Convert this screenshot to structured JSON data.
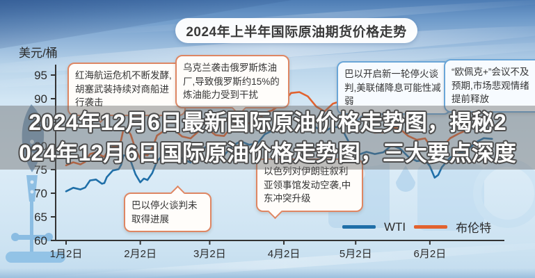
{
  "title_banner": "2024年上半年国际原油期货价格走势",
  "overlay": {
    "line1": "2024年12月6日最新国际原油价格走势图，揭秘2",
    "line2": "024年12月6日国际原油价格走势图，三大要点深度"
  },
  "axis": {
    "unit_label": "美元/桶"
  },
  "legend": [
    {
      "label": "WTI",
      "color": "#1f6fa8"
    },
    {
      "label": "布伦特",
      "color": "#e2622e"
    }
  ],
  "annotations": [
    {
      "style": "red",
      "text": "红海航运危机不断发酵,胡塞武装持续对商船进行袭击"
    },
    {
      "style": "red",
      "text": "乌克兰袭击俄罗斯炼油厂,导致俄罗斯约15%的炼油能力受到干扰"
    },
    {
      "style": "blue",
      "text": "巴以开启新一轮停火谈判,美联储降息可能性减弱"
    },
    {
      "style": "blue",
      "text": "“欧佩克+”会议不及预期,市场悲观情绪提前释放"
    },
    {
      "style": "red",
      "text": "巴以停火谈判未取得进展"
    },
    {
      "style": "red",
      "text": "以色列对伊朗驻叙利亚领事馆发动空袭,中东冲突升级"
    }
  ],
  "chart_data": {
    "type": "line",
    "title": "2024年上半年国际原油期货价格走势",
    "ylabel": "美元/桶",
    "ylim": [
      60,
      97
    ],
    "grid": false,
    "legend_position": "bottom-right",
    "y_tick_values": [
      95,
      90,
      85,
      80,
      75,
      70,
      65,
      60
    ],
    "x_tick_labels": [
      "1月2日",
      "2月2日",
      "3月2日",
      "4月2日",
      "5月2日",
      "6月2日"
    ],
    "x_tick_day_offsets": [
      0,
      31,
      60,
      91,
      121,
      152
    ],
    "x_days": [
      0,
      6,
      10,
      15,
      17,
      22,
      24,
      27,
      31,
      34,
      38,
      45,
      52,
      59,
      66,
      73,
      80,
      86,
      94,
      101,
      108,
      115,
      122,
      129,
      136,
      143,
      150,
      154,
      157,
      164,
      171,
      178
    ],
    "series": [
      {
        "name": "WTI",
        "color": "#1f6fa8",
        "values": [
          70.4,
          70.8,
          72.7,
          72.0,
          73.4,
          75.1,
          78.0,
          76.8,
          72.3,
          72.8,
          76.8,
          79.2,
          76.5,
          80.0,
          78.0,
          81.0,
          80.6,
          83.2,
          86.9,
          85.7,
          83.1,
          83.9,
          78.1,
          78.3,
          80.1,
          77.7,
          77.0,
          73.3,
          75.5,
          78.5,
          80.7,
          81.5
        ]
      },
      {
        "name": "布伦特",
        "color": "#e2622e",
        "values": [
          75.9,
          76.1,
          78.3,
          77.9,
          78.6,
          80.0,
          83.6,
          82.4,
          77.3,
          78.0,
          82.2,
          83.5,
          81.6,
          83.6,
          82.1,
          85.3,
          85.4,
          87.5,
          91.2,
          90.5,
          87.3,
          89.5,
          83.0,
          82.8,
          84.0,
          82.1,
          81.6,
          77.5,
          79.6,
          82.6,
          85.2,
          86.4
        ]
      }
    ]
  }
}
